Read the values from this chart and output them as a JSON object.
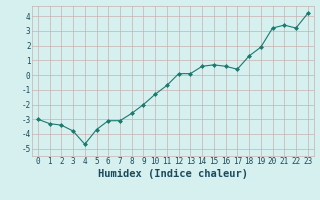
{
  "x": [
    0,
    1,
    2,
    3,
    4,
    5,
    6,
    7,
    8,
    9,
    10,
    11,
    12,
    13,
    14,
    15,
    16,
    17,
    18,
    19,
    20,
    21,
    22,
    23
  ],
  "y": [
    -3.0,
    -3.3,
    -3.4,
    -3.8,
    -4.7,
    -3.7,
    -3.1,
    -3.1,
    -2.6,
    -2.0,
    -1.3,
    -0.7,
    0.1,
    0.1,
    0.6,
    0.7,
    0.6,
    0.4,
    1.3,
    1.9,
    3.2,
    3.4,
    3.2,
    4.2
  ],
  "line_color": "#1a7a6e",
  "marker": "D",
  "marker_size": 2.0,
  "bg_color": "#d6f0ef",
  "grid_color": "#c8b0b0",
  "xlabel": "Humidex (Indice chaleur)",
  "xlim": [
    -0.5,
    23.5
  ],
  "ylim": [
    -5.5,
    4.7
  ],
  "yticks": [
    -5,
    -4,
    -3,
    -2,
    -1,
    0,
    1,
    2,
    3,
    4
  ],
  "xtick_labels": [
    "0",
    "1",
    "2",
    "3",
    "4",
    "5",
    "6",
    "7",
    "8",
    "9",
    "10",
    "11",
    "12",
    "13",
    "14",
    "15",
    "16",
    "17",
    "18",
    "19",
    "20",
    "21",
    "22",
    "23"
  ],
  "font_color": "#1a4a5c",
  "tick_fontsize": 5.5,
  "label_fontsize": 7.5
}
